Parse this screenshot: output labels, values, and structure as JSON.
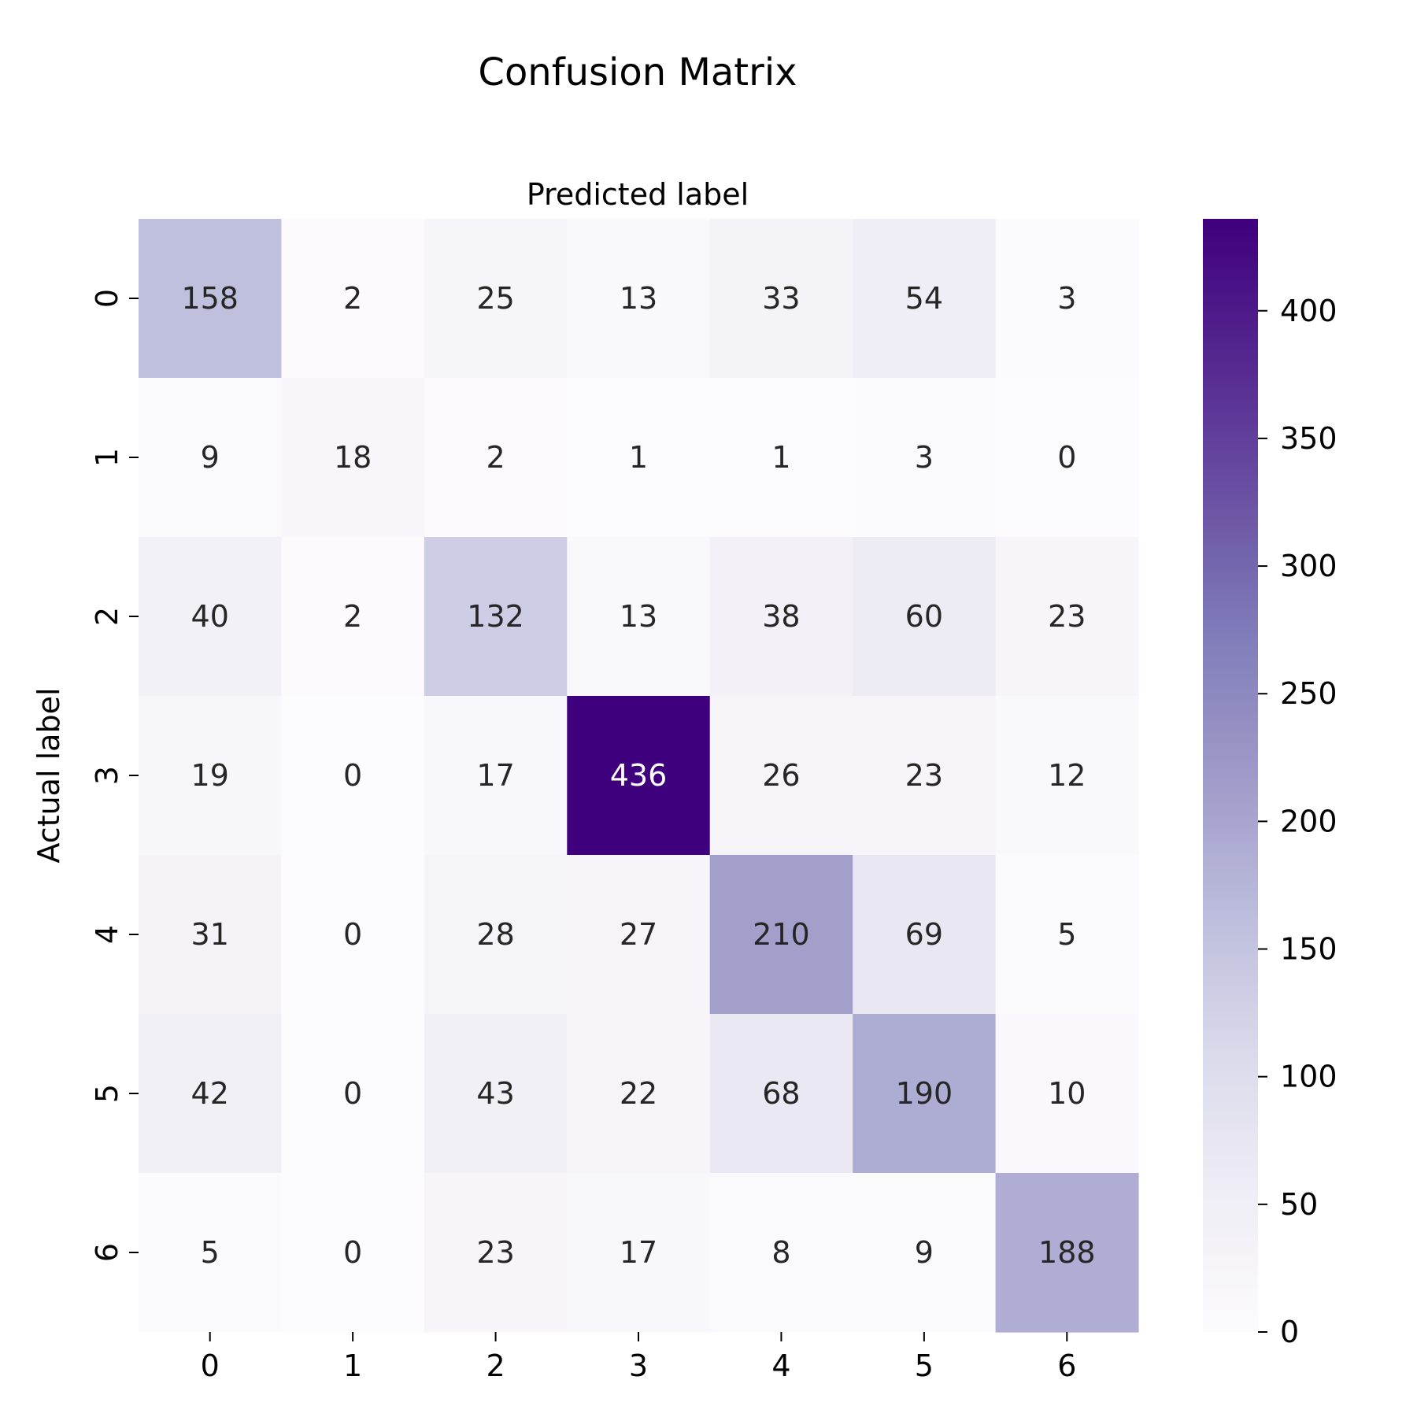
{
  "chart_data": {
    "type": "heatmap",
    "title": "Confusion Matrix",
    "xlabel": "Predicted label",
    "ylabel": "Actual label",
    "x_categories": [
      "0",
      "1",
      "2",
      "3",
      "4",
      "5",
      "6"
    ],
    "y_categories": [
      "0",
      "1",
      "2",
      "3",
      "4",
      "5",
      "6"
    ],
    "values": [
      [
        158,
        2,
        25,
        13,
        33,
        54,
        3
      ],
      [
        9,
        18,
        2,
        1,
        1,
        3,
        0
      ],
      [
        40,
        2,
        132,
        13,
        38,
        60,
        23
      ],
      [
        19,
        0,
        17,
        436,
        26,
        23,
        12
      ],
      [
        31,
        0,
        28,
        27,
        210,
        69,
        5
      ],
      [
        42,
        0,
        43,
        22,
        68,
        190,
        10
      ],
      [
        5,
        0,
        23,
        17,
        8,
        9,
        188
      ]
    ],
    "xaxis_position": "top",
    "colormap": "Purples",
    "colorbar": {
      "min": 0,
      "max": 436,
      "ticks": [
        0,
        50,
        100,
        150,
        200,
        250,
        300,
        350,
        400
      ]
    },
    "grid": false
  }
}
